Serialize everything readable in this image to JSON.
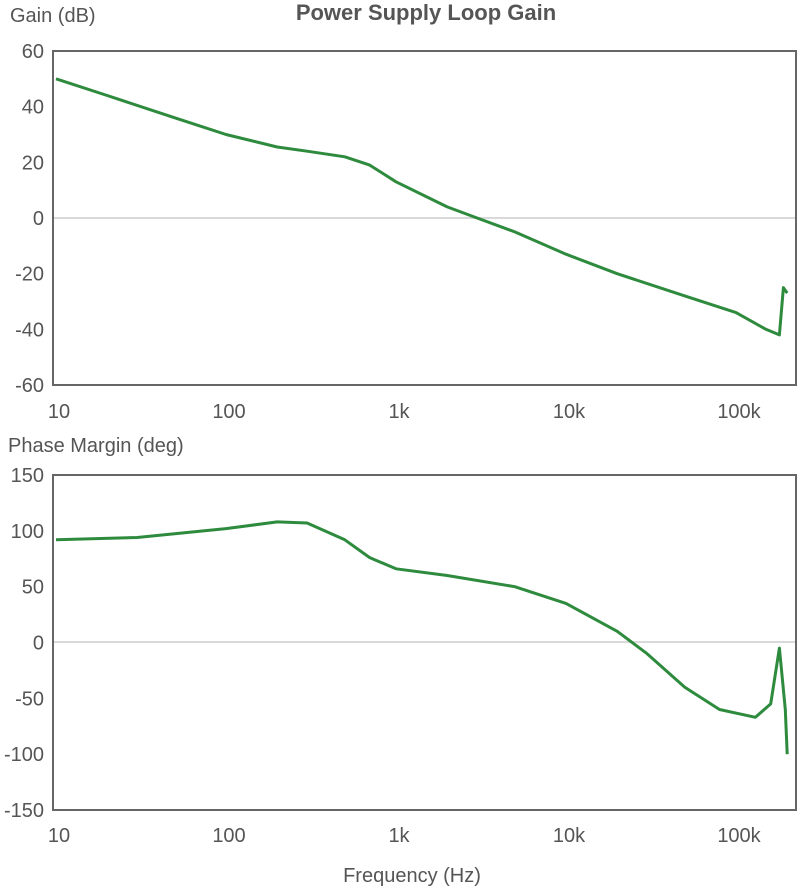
{
  "chart_data": [
    {
      "type": "line",
      "title": "Power Supply Loop Gain",
      "xlabel": "",
      "ylabel": "Gain (dB)",
      "xscale": "log",
      "xlim": [
        10,
        200000
      ],
      "ylim": [
        -60,
        60
      ],
      "x_ticks": [
        "10",
        "100",
        "1k",
        "10k",
        "100k"
      ],
      "y_ticks": [
        "60",
        "40",
        "20",
        "0",
        "-20",
        "-40",
        "-60"
      ],
      "grid": false,
      "reference_line": 0,
      "line_color": "#2e8b3e",
      "series": [
        {
          "name": "Gain",
          "x": [
            10,
            20,
            50,
            100,
            200,
            300,
            500,
            700,
            1000,
            2000,
            3000,
            5000,
            10000,
            20000,
            50000,
            100000,
            150000,
            180000,
            190000,
            200000
          ],
          "values": [
            50,
            44,
            36,
            30,
            25.5,
            24,
            22,
            19,
            13,
            4,
            0,
            -5,
            -13,
            -20,
            -28,
            -34,
            -40,
            -42,
            -25,
            -27
          ]
        }
      ]
    },
    {
      "type": "line",
      "title": "",
      "xlabel": "Frequency (Hz)",
      "ylabel": "Phase Margin (deg)",
      "xscale": "log",
      "xlim": [
        10,
        200000
      ],
      "ylim": [
        -150,
        150
      ],
      "x_ticks": [
        "10",
        "100",
        "1k",
        "10k",
        "100k"
      ],
      "y_ticks": [
        "150",
        "100",
        "50",
        "0",
        "-50",
        "-100",
        "-150"
      ],
      "grid": false,
      "reference_line": 0,
      "line_color": "#2e8b3e",
      "series": [
        {
          "name": "Phase Margin",
          "x": [
            10,
            30,
            100,
            200,
            300,
            500,
            700,
            1000,
            2000,
            5000,
            10000,
            20000,
            30000,
            50000,
            80000,
            130000,
            160000,
            180000,
            195000,
            200000
          ],
          "values": [
            92,
            94,
            102,
            108,
            107,
            92,
            76,
            66,
            60,
            50,
            35,
            10,
            -10,
            -40,
            -60,
            -67,
            -55,
            -5,
            -60,
            -100
          ]
        }
      ]
    }
  ],
  "labels": {
    "title": "Power Supply Loop Gain",
    "gain_ylabel": "Gain (dB)",
    "phase_ylabel": "Phase Margin (deg)",
    "xlabel": "Frequency (Hz)",
    "x_ticks": [
      "10",
      "100",
      "1k",
      "10k",
      "100k"
    ],
    "gain_y_ticks": [
      "60",
      "40",
      "20",
      "0",
      "-20",
      "-40",
      "-60"
    ],
    "phase_y_ticks": [
      "150",
      "100",
      "50",
      "0",
      "-50",
      "-100",
      "-150"
    ]
  }
}
